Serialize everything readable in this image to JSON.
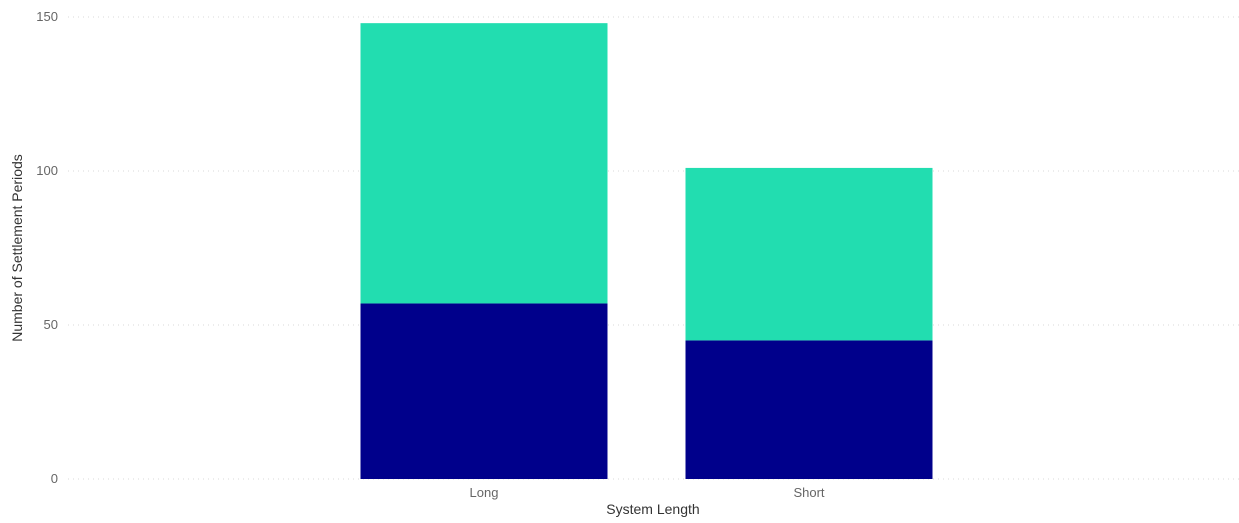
{
  "chart_data": {
    "type": "bar",
    "stacked": true,
    "categories": [
      "Long",
      "Short"
    ],
    "series": [
      {
        "values": [
          57,
          45
        ],
        "color": "#00008B"
      },
      {
        "values": [
          91,
          56
        ],
        "color": "#22DDB0"
      }
    ],
    "xlabel": "System Length",
    "ylabel": "Number of Settlement Periods",
    "ylim": [
      0,
      150
    ],
    "yticks": [
      0,
      50,
      100,
      150
    ],
    "grid": true,
    "legend": "none"
  }
}
